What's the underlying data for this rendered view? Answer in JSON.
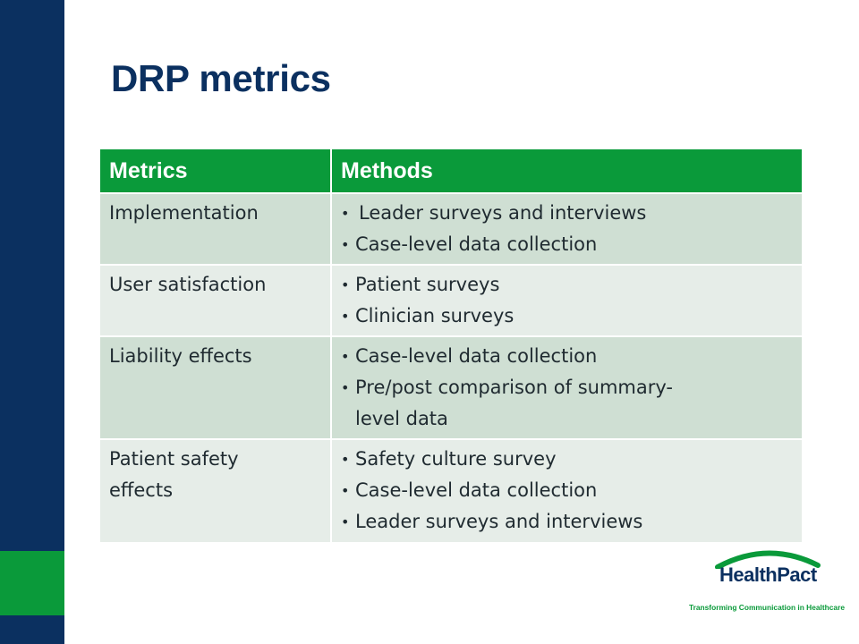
{
  "slide": {
    "title": "DRP metrics",
    "colors": {
      "navy": "#0b3060",
      "green": "#0a9a3a",
      "row_dark": "#cfdfd3",
      "row_light": "#e6ede8"
    }
  },
  "table": {
    "headers": [
      "Metrics",
      "Methods"
    ],
    "rows": [
      {
        "metric": "Implementation",
        "methods": [
          "Leader surveys and interviews",
          "Case-level data collection"
        ]
      },
      {
        "metric": "User satisfaction",
        "methods": [
          "Patient surveys",
          "Clinician surveys"
        ]
      },
      {
        "metric": "Liability effects",
        "methods": [
          "Case-level data collection",
          "Pre/post comparison of summary-level data"
        ]
      },
      {
        "metric": "Patient safety effects",
        "methods": [
          "Safety culture survey",
          "Case-level data collection",
          "Leader surveys and interviews"
        ]
      }
    ]
  },
  "logo": {
    "name": "HealthPact",
    "tagline": "Transforming Communication in Healthcare"
  }
}
